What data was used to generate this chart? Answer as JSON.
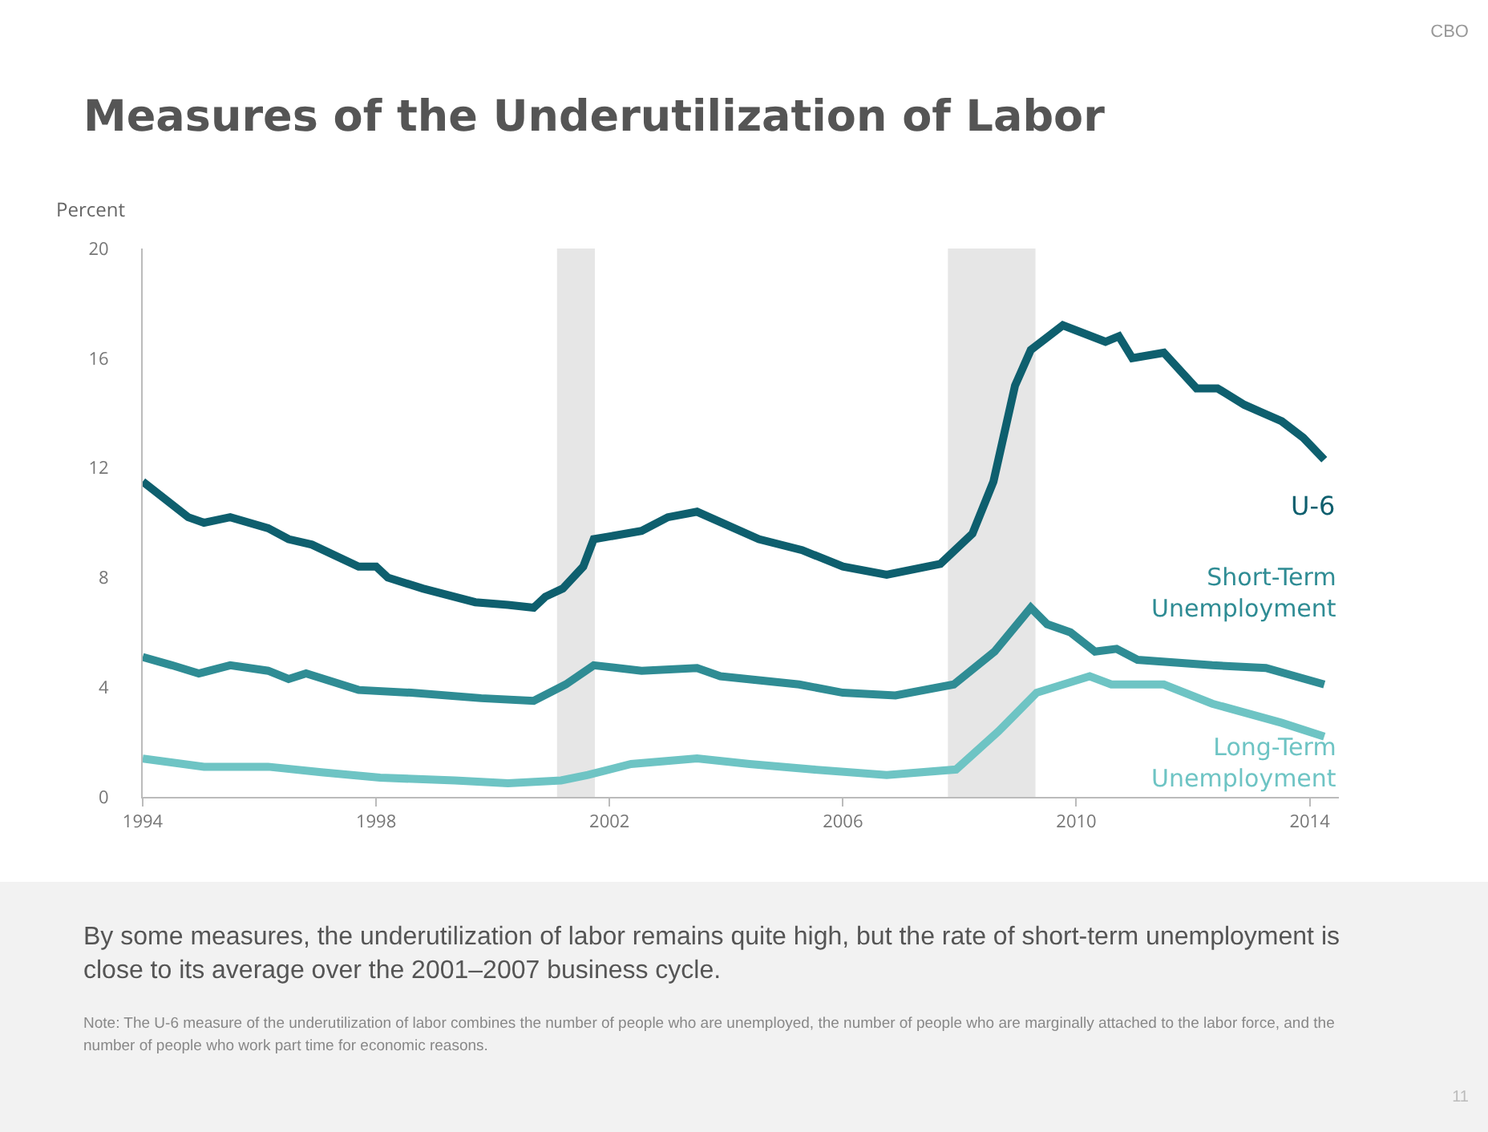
{
  "chart_data": {
    "type": "line",
    "title": "Measures of the Underutilization of Labor",
    "ylabel": "Percent",
    "xlim": [
      1994,
      2014.5
    ],
    "xticks": [
      1994,
      1998,
      2002,
      2006,
      2010,
      2014
    ],
    "ylim": [
      0,
      20
    ],
    "yticks": [
      0,
      4,
      8,
      12,
      16,
      20
    ],
    "grid": false,
    "legend": false,
    "marker": "none",
    "line_style": "solid",
    "bands": [
      {
        "axis": "x",
        "from": 2001.1,
        "to": 2001.75,
        "color": "#e6e6e6"
      },
      {
        "axis": "x",
        "from": 2007.8,
        "to": 2009.3,
        "color": "#e6e6e6"
      }
    ],
    "series": [
      {
        "name": "U-6",
        "color": "#0e5f6e",
        "x": [
          1994,
          1994.78,
          1995.05,
          1995.5,
          1996.15,
          1996.5,
          1996.9,
          1997.7,
          1998,
          1998.2,
          1998.8,
          1999.7,
          2000.26,
          2000.7,
          2000.9,
          2001.2,
          2001.55,
          2001.73,
          2002.55,
          2003,
          2003.5,
          2004.56,
          2005.3,
          2006,
          2006.75,
          2007.67,
          2008.22,
          2008.58,
          2008.95,
          2009.22,
          2009.77,
          2010.5,
          2010.73,
          2010.96,
          2011.5,
          2012.06,
          2012.42,
          2012.88,
          2013.52,
          2013.89,
          2014.25
        ],
        "values": [
          11.5,
          10.2,
          10,
          10.2,
          9.8,
          9.4,
          9.2,
          8.4,
          8.4,
          8,
          7.6,
          7.1,
          7,
          6.9,
          7.3,
          7.6,
          8.4,
          9.4,
          9.7,
          10.2,
          10.4,
          9.4,
          9,
          8.4,
          8.1,
          8.5,
          9.6,
          11.5,
          15,
          16.3,
          17.2,
          16.6,
          16.8,
          16,
          16.2,
          14.9,
          14.9,
          14.3,
          13.7,
          13.1,
          12.3
        ]
      },
      {
        "name": "Short-Term Unemployment",
        "color": "#2f8c94",
        "x": [
          1994,
          1994.5,
          1994.96,
          1995.5,
          1996.15,
          1996.5,
          1996.8,
          1997.7,
          1998.6,
          1999.8,
          2000.7,
          2001.25,
          2001.73,
          2002.55,
          2003.5,
          2003.9,
          2005.25,
          2006,
          2006.9,
          2007.9,
          2008.6,
          2009.22,
          2009.5,
          2009.9,
          2010.32,
          2010.69,
          2011.05,
          2012.33,
          2013.25,
          2014.25
        ],
        "values": [
          5.1,
          4.8,
          4.5,
          4.8,
          4.6,
          4.3,
          4.5,
          3.9,
          3.8,
          3.6,
          3.5,
          4.1,
          4.8,
          4.6,
          4.7,
          4.4,
          4.1,
          3.8,
          3.7,
          4.1,
          5.3,
          6.9,
          6.3,
          6.0,
          5.3,
          5.4,
          5.0,
          4.8,
          4.7,
          4.1
        ]
      },
      {
        "name": "Long-Term Unemployment",
        "color": "#6ec4c4",
        "x": [
          1994,
          1995.05,
          1996.15,
          1997.06,
          1998.07,
          1999.35,
          2000.26,
          2001.17,
          2001.63,
          2002.37,
          2003.5,
          2004.4,
          2005.48,
          2006.75,
          2007.94,
          2008.67,
          2009.32,
          2010.23,
          2010.6,
          2011.5,
          2012.33,
          2013.52,
          2014.25
        ],
        "values": [
          1.4,
          1.1,
          1.1,
          0.9,
          0.7,
          0.6,
          0.5,
          0.6,
          0.8,
          1.2,
          1.4,
          1.2,
          1,
          0.8,
          1,
          2.4,
          3.8,
          4.4,
          4.1,
          4.1,
          3.4,
          2.7,
          2.2
        ]
      }
    ],
    "annotations": [
      "CBO",
      "By some measures, the underutilization of labor remains quite high, but the rate of short-term unemployment is close to its average over the 2001–2007 business cycle.",
      "Note: The U-6 measure of the underutilization of labor combines the number of people who are unemployed, the number of people who are marginally attached to the labor force, and the number of people who work part time for economic reasons.",
      "11"
    ]
  }
}
